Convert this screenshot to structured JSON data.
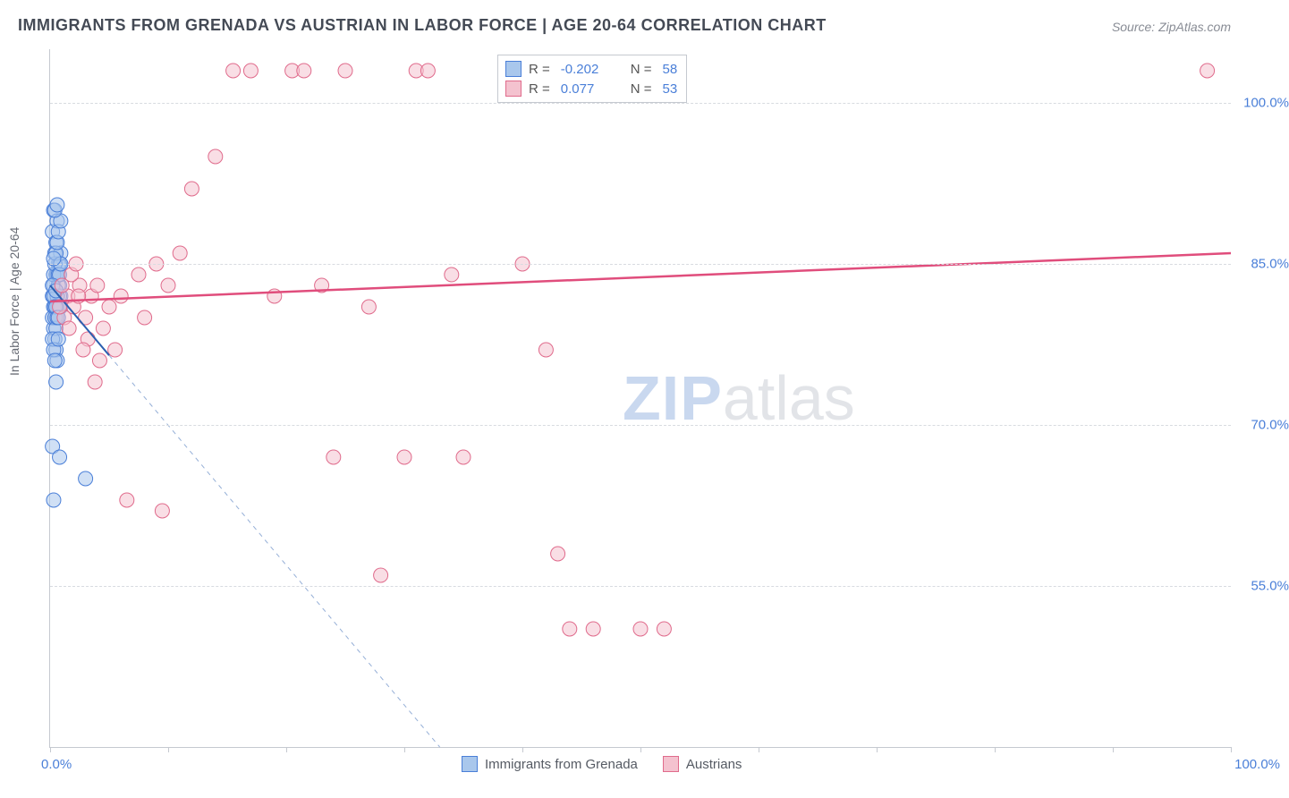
{
  "title": "IMMIGRANTS FROM GRENADA VS AUSTRIAN IN LABOR FORCE | AGE 20-64 CORRELATION CHART",
  "source": "Source: ZipAtlas.com",
  "ylabel": "In Labor Force | Age 20-64",
  "watermark_a": "ZIP",
  "watermark_b": "atlas",
  "chart": {
    "type": "scatter",
    "background_color": "#ffffff",
    "grid_color": "#d8dbe0",
    "axis_color": "#c5c9d0",
    "label_color": "#666a73",
    "value_color": "#4a7fd8",
    "marker_radius": 8,
    "marker_opacity": 0.55,
    "x_domain": [
      0,
      100
    ],
    "y_domain": [
      40,
      105
    ],
    "y_ticks": [
      55,
      70,
      85,
      100
    ],
    "y_tick_labels": [
      "55.0%",
      "70.0%",
      "85.0%",
      "100.0%"
    ],
    "x_tick_positions": [
      0,
      10,
      20,
      30,
      40,
      50,
      60,
      70,
      80,
      90,
      100
    ],
    "x_min_label": "0.0%",
    "x_max_label": "100.0%",
    "series": [
      {
        "name": "Immigrants from Grenada",
        "color_fill": "#a9c7ec",
        "color_stroke": "#4a7fd8",
        "r_value": "-0.202",
        "n_value": "58",
        "trend": {
          "x1": 0,
          "y1": 83,
          "x2": 33,
          "y2": 40,
          "stroke": "#2b5fb0",
          "width": 2,
          "solid_until_x": 5
        },
        "points": [
          [
            0.2,
            88
          ],
          [
            0.3,
            90
          ],
          [
            0.5,
            87
          ],
          [
            0.6,
            89
          ],
          [
            0.4,
            86
          ],
          [
            0.7,
            85
          ],
          [
            0.5,
            84
          ],
          [
            0.8,
            83
          ],
          [
            0.9,
            82
          ],
          [
            0.6,
            81
          ],
          [
            0.3,
            83
          ],
          [
            0.4,
            82
          ],
          [
            0.7,
            81
          ],
          [
            0.5,
            80
          ],
          [
            0.6,
            84
          ],
          [
            0.8,
            85
          ],
          [
            0.9,
            86
          ],
          [
            0.3,
            79
          ],
          [
            0.4,
            78
          ],
          [
            0.5,
            77
          ],
          [
            0.6,
            76
          ],
          [
            0.2,
            80
          ],
          [
            0.3,
            81
          ],
          [
            0.4,
            80
          ],
          [
            0.5,
            79
          ],
          [
            0.7,
            83
          ],
          [
            0.8,
            82
          ],
          [
            0.9,
            81
          ],
          [
            0.2,
            82
          ],
          [
            0.3,
            84
          ],
          [
            0.4,
            85
          ],
          [
            0.5,
            86
          ],
          [
            0.6,
            87
          ],
          [
            0.2,
            78
          ],
          [
            0.3,
            77
          ],
          [
            0.4,
            76
          ],
          [
            0.6,
            82
          ],
          [
            0.7,
            84
          ],
          [
            0.8,
            84
          ],
          [
            0.9,
            85
          ],
          [
            0.2,
            83
          ],
          [
            0.3,
            82
          ],
          [
            0.4,
            81
          ],
          [
            0.5,
            81
          ],
          [
            0.6,
            80
          ],
          [
            0.7,
            80
          ],
          [
            0.2,
            68
          ],
          [
            0.8,
            67
          ],
          [
            3.0,
            65
          ],
          [
            0.3,
            63
          ],
          [
            0.5,
            74
          ],
          [
            0.7,
            88
          ],
          [
            0.9,
            89
          ],
          [
            0.4,
            90
          ],
          [
            0.6,
            90.5
          ],
          [
            0.3,
            85.5
          ],
          [
            0.5,
            82.5
          ],
          [
            0.7,
            78
          ]
        ]
      },
      {
        "name": "Austrians",
        "color_fill": "#f4c2cf",
        "color_stroke": "#e06b8c",
        "r_value": "0.077",
        "n_value": "53",
        "trend": {
          "x1": 0,
          "y1": 81.5,
          "x2": 100,
          "y2": 86,
          "stroke": "#e04d7c",
          "width": 2.5,
          "solid_until_x": 100
        },
        "points": [
          [
            1.5,
            82
          ],
          [
            2.0,
            81
          ],
          [
            2.5,
            83
          ],
          [
            3.0,
            80
          ],
          [
            3.5,
            82
          ],
          [
            1.8,
            84
          ],
          [
            2.2,
            85
          ],
          [
            4.0,
            83
          ],
          [
            4.5,
            79
          ],
          [
            5.0,
            81
          ],
          [
            5.5,
            77
          ],
          [
            6.0,
            82
          ],
          [
            7.5,
            84
          ],
          [
            8.0,
            80
          ],
          [
            9.0,
            85
          ],
          [
            10.0,
            83
          ],
          [
            11.0,
            86
          ],
          [
            12.0,
            92
          ],
          [
            14.0,
            95
          ],
          [
            15.5,
            103
          ],
          [
            17.0,
            103
          ],
          [
            19.0,
            82
          ],
          [
            20.5,
            103
          ],
          [
            21.5,
            103
          ],
          [
            23.0,
            83
          ],
          [
            24.0,
            67
          ],
          [
            25.0,
            103
          ],
          [
            27.0,
            81
          ],
          [
            28.0,
            56
          ],
          [
            30.0,
            67
          ],
          [
            31.0,
            103
          ],
          [
            32.0,
            103
          ],
          [
            34.0,
            84
          ],
          [
            35.0,
            67
          ],
          [
            40.0,
            85
          ],
          [
            42.0,
            77
          ],
          [
            43.0,
            58
          ],
          [
            44.0,
            51
          ],
          [
            46.0,
            51
          ],
          [
            50.0,
            51
          ],
          [
            52.0,
            51
          ],
          [
            98.0,
            103
          ],
          [
            3.2,
            78
          ],
          [
            4.2,
            76
          ],
          [
            6.5,
            63
          ],
          [
            9.5,
            62
          ],
          [
            1.2,
            80
          ],
          [
            1.6,
            79
          ],
          [
            2.8,
            77
          ],
          [
            3.8,
            74
          ],
          [
            1.0,
            83
          ],
          [
            2.4,
            82
          ],
          [
            0.8,
            81
          ]
        ]
      }
    ],
    "bottom_legend": [
      {
        "label": "Immigrants from Grenada",
        "fill": "#a9c7ec",
        "stroke": "#4a7fd8"
      },
      {
        "label": "Austrians",
        "fill": "#f4c2cf",
        "stroke": "#e06b8c"
      }
    ]
  }
}
